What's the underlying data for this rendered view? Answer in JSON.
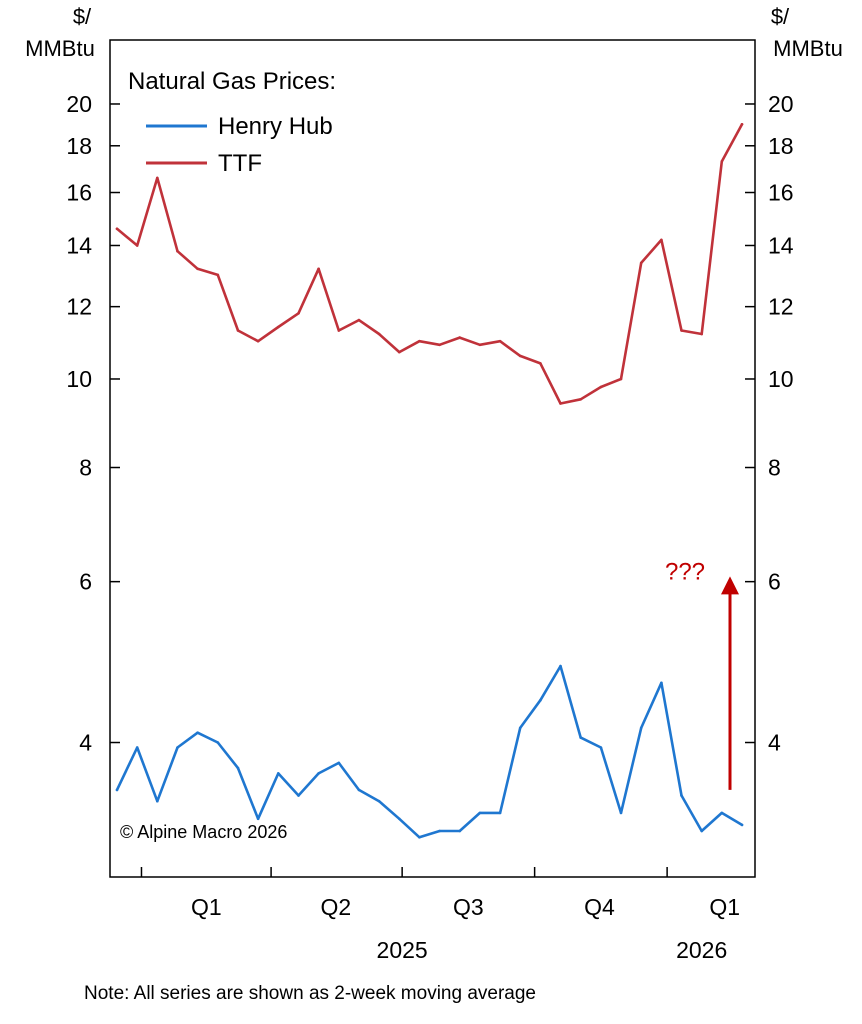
{
  "chart_data": {
    "type": "line",
    "y_scale": "log",
    "ylim": [
      2.85,
      23.5
    ],
    "y_ticks": [
      4,
      6,
      8,
      10,
      12,
      14,
      16,
      18,
      20
    ],
    "unit_left": [
      "$/",
      "MMBtu"
    ],
    "unit_right": [
      "$/",
      "MMBtu"
    ],
    "legend_title": "Natural Gas Prices:",
    "legend_placement": "top-left",
    "grid": false,
    "quarter_labels": [
      "Q1",
      "Q2",
      "Q3",
      "Q4",
      "Q1"
    ],
    "year_labels": [
      "2025",
      "2026"
    ],
    "copyright": "© Alpine Macro 2026",
    "annotation": {
      "text": "???",
      "arrow_from": 3.55,
      "arrow_to": 6.05,
      "color": "#c00000"
    },
    "x": [
      "2024-12-15",
      "2024-12-29",
      "2025-01-12",
      "2025-01-26",
      "2025-02-09",
      "2025-02-23",
      "2025-03-09",
      "2025-03-23",
      "2025-04-06",
      "2025-04-20",
      "2025-05-04",
      "2025-05-18",
      "2025-06-01",
      "2025-06-15",
      "2025-06-29",
      "2025-07-13",
      "2025-07-27",
      "2025-08-10",
      "2025-08-24",
      "2025-09-07",
      "2025-09-21",
      "2025-10-05",
      "2025-10-19",
      "2025-11-02",
      "2025-11-16",
      "2025-11-30",
      "2025-12-14",
      "2025-12-28",
      "2026-01-11",
      "2026-01-25",
      "2026-02-08",
      "2026-02-22"
    ],
    "series": [
      {
        "name": "Henry Hub",
        "color": "#1f77d0",
        "values": [
          3.55,
          3.95,
          3.45,
          3.95,
          4.1,
          4.0,
          3.75,
          3.3,
          3.7,
          3.5,
          3.7,
          3.8,
          3.55,
          3.45,
          3.3,
          3.15,
          3.2,
          3.2,
          3.35,
          3.35,
          4.15,
          4.45,
          4.85,
          4.05,
          3.95,
          3.35,
          4.15,
          4.65,
          3.5,
          3.2,
          3.35,
          3.25
        ]
      },
      {
        "name": "TTF",
        "color": "#c0323a",
        "values": [
          14.6,
          14.0,
          16.6,
          13.8,
          13.2,
          13.0,
          11.3,
          11.0,
          11.4,
          11.8,
          13.2,
          11.3,
          11.6,
          11.2,
          10.7,
          11.0,
          10.9,
          11.1,
          10.9,
          11.0,
          10.6,
          10.4,
          9.4,
          9.5,
          9.8,
          10.0,
          13.4,
          14.2,
          11.3,
          11.2,
          17.3,
          19.0
        ]
      }
    ]
  },
  "note": "Note: All series are shown as 2-week moving average"
}
